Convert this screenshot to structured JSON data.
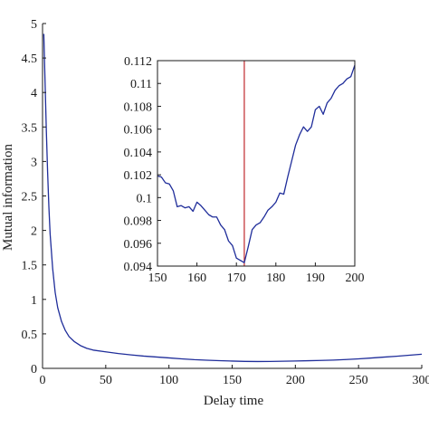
{
  "colors": {
    "series": "#1f2d9a",
    "marker": "#c0282d",
    "axes": "#1a1a1a",
    "background": "#ffffff"
  },
  "chart_data": [
    {
      "id": "main",
      "type": "line",
      "title": "",
      "xlabel": "Delay time",
      "ylabel": "Mutual information",
      "xlim": [
        0,
        300
      ],
      "ylim": [
        0,
        5
      ],
      "grid": false,
      "xticks": [
        0,
        50,
        100,
        150,
        200,
        250,
        300
      ],
      "xtick_labels": [
        "0",
        "50",
        "100",
        "150",
        "200",
        "250",
        "300"
      ],
      "yticks": [
        0,
        0.5,
        1,
        1.5,
        2,
        2.5,
        3,
        3.5,
        4,
        4.5,
        5
      ],
      "ytick_labels": [
        "0",
        "0.5",
        "1",
        "1.5",
        "2",
        "2.5",
        "3",
        "3.5",
        "4",
        "4.5",
        "5"
      ],
      "series": [
        {
          "x": [
            1,
            2,
            3,
            4,
            5,
            6,
            8,
            10,
            12,
            15,
            18,
            21,
            25,
            30,
            35,
            40,
            50,
            60,
            70,
            80,
            90,
            100,
            110,
            120,
            130,
            140,
            150,
            160,
            170,
            180,
            190,
            200,
            210,
            220,
            230,
            240,
            250,
            260,
            270,
            280,
            290,
            300
          ],
          "y": [
            4.85,
            4.15,
            3.45,
            2.85,
            2.35,
            1.95,
            1.45,
            1.1,
            0.88,
            0.68,
            0.55,
            0.46,
            0.39,
            0.33,
            0.29,
            0.265,
            0.24,
            0.215,
            0.195,
            0.178,
            0.165,
            0.152,
            0.138,
            0.126,
            0.118,
            0.112,
            0.106,
            0.101,
            0.099,
            0.1,
            0.103,
            0.107,
            0.111,
            0.115,
            0.12,
            0.128,
            0.138,
            0.15,
            0.163,
            0.176,
            0.19,
            0.205
          ]
        }
      ]
    },
    {
      "id": "inset",
      "type": "line",
      "title": "",
      "xlabel": "",
      "ylabel": "",
      "xlim": [
        150,
        200
      ],
      "ylim": [
        0.094,
        0.112
      ],
      "grid": false,
      "xticks": [
        150,
        160,
        170,
        180,
        190,
        200
      ],
      "xtick_labels": [
        "150",
        "160",
        "170",
        "180",
        "190",
        "200"
      ],
      "yticks": [
        0.094,
        0.096,
        0.098,
        0.1,
        0.102,
        0.104,
        0.106,
        0.108,
        0.11,
        0.112
      ],
      "ytick_labels": [
        "0.094",
        "0.096",
        "0.098",
        "0.1",
        "0.102",
        "0.104",
        "0.106",
        "0.108",
        "0.11",
        "0.112"
      ],
      "vline_x": 172,
      "series": [
        {
          "x": [
            150,
            151,
            152,
            153,
            154,
            155,
            156,
            157,
            158,
            159,
            160,
            161,
            162,
            163,
            164,
            165,
            166,
            167,
            168,
            169,
            170,
            171,
            172,
            173,
            174,
            175,
            176,
            177,
            178,
            179,
            180,
            181,
            182,
            183,
            184,
            185,
            186,
            187,
            188,
            189,
            190,
            191,
            192,
            193,
            194,
            195,
            196,
            197,
            198,
            199,
            200
          ],
          "y": [
            0.1019,
            0.1018,
            0.1013,
            0.1012,
            0.1006,
            0.0992,
            0.0993,
            0.0991,
            0.0992,
            0.0988,
            0.0996,
            0.0993,
            0.0989,
            0.0985,
            0.0983,
            0.0983,
            0.0976,
            0.0972,
            0.0962,
            0.0958,
            0.0947,
            0.0945,
            0.0943,
            0.0957,
            0.0972,
            0.0976,
            0.0978,
            0.0983,
            0.0989,
            0.0992,
            0.0996,
            0.1004,
            0.1003,
            0.1018,
            0.1032,
            0.1046,
            0.1055,
            0.1062,
            0.1058,
            0.1062,
            0.1077,
            0.108,
            0.1073,
            0.1083,
            0.1087,
            0.1094,
            0.1098,
            0.11,
            0.1104,
            0.1106,
            0.1116
          ]
        }
      ]
    }
  ]
}
